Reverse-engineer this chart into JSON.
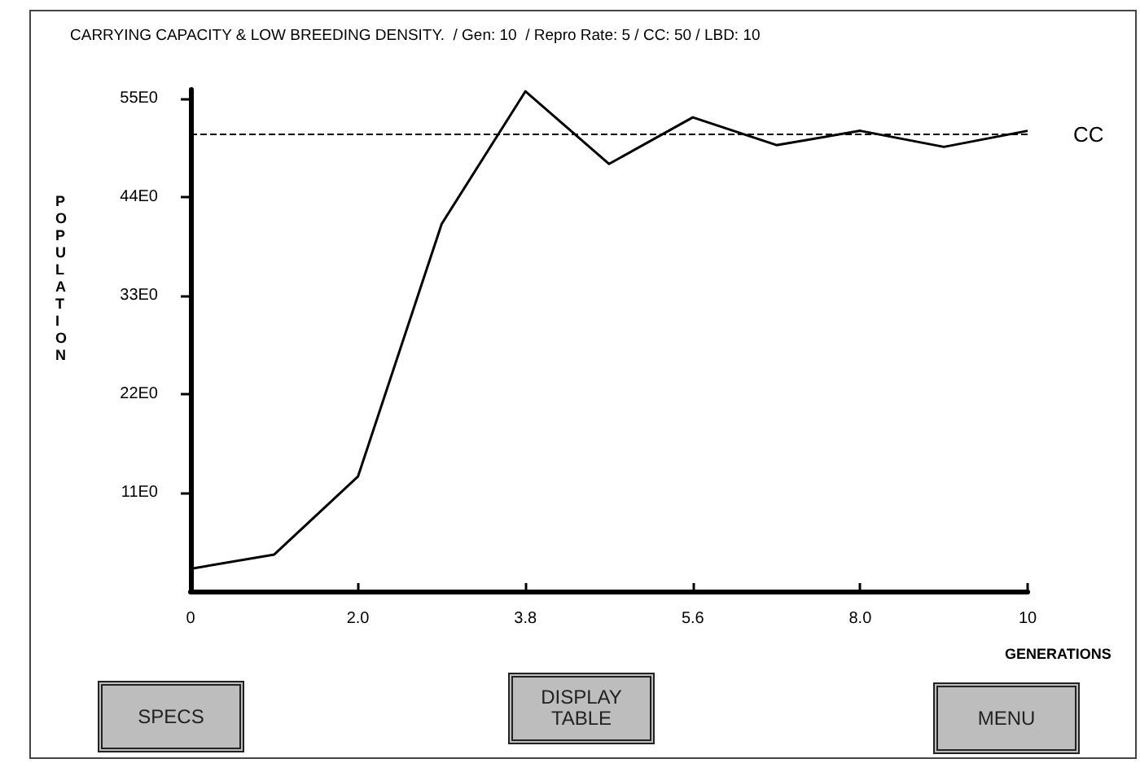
{
  "chart_data": {
    "type": "line",
    "title": "CARRYING CAPACITY & LOW BREEDING DENSITY.  / Gen: 10  / Repro Rate: 5 / CC: 50 / LBD: 10",
    "xlabel": "GENERATIONS",
    "ylabel": "POPULATION",
    "categories": [
      "0",
      null,
      "2.0",
      null,
      "3.8",
      null,
      "5.6",
      null,
      "8.0",
      null,
      "10"
    ],
    "series": [
      {
        "color": "#000000",
        "values": [
          2.5,
          4.1,
          12.8,
          41,
          55.8,
          47.7,
          52.9,
          49.8,
          51.4,
          49.6,
          51.4
        ]
      }
    ],
    "ylim": [
      0,
      56
    ],
    "yticks": [
      {
        "value": 11,
        "label": "11E0"
      },
      {
        "value": 22,
        "label": "22E0"
      },
      {
        "value": 33,
        "label": "33E0"
      },
      {
        "value": 44,
        "label": "44E0"
      },
      {
        "value": 55,
        "label": "55E0"
      }
    ],
    "ref_lines": [
      {
        "axis": "y",
        "value": 51,
        "label": "CC",
        "color": "#000000",
        "line_style": "dashed"
      }
    ],
    "annotations": [
      "SPECS",
      "DISPLAY TABLE",
      "MENU"
    ],
    "grid": false,
    "marker": "none",
    "line_style": "solid"
  }
}
